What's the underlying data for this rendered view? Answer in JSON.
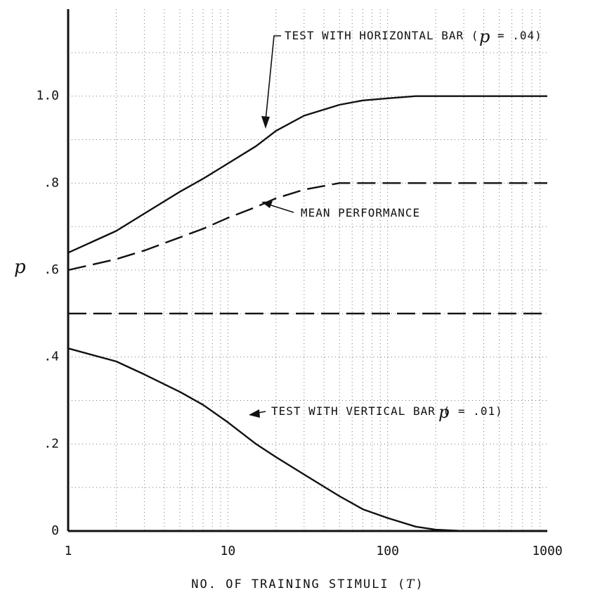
{
  "chart_data": {
    "type": "line",
    "x_scale": "log",
    "xlim": [
      1,
      1000
    ],
    "ylim": [
      0,
      1.2
    ],
    "grid": true,
    "xlabel_prefix": "NO. OF TRAINING STIMULI (",
    "xlabel_var": "T",
    "xlabel_suffix": ")",
    "ylabel": "p",
    "x_ticks": [
      {
        "value": 1,
        "label": "1"
      },
      {
        "value": 10,
        "label": "10"
      },
      {
        "value": 100,
        "label": "100"
      },
      {
        "value": 1000,
        "label": "1000"
      }
    ],
    "y_ticks": [
      {
        "value": 0,
        "label": "0"
      },
      {
        "value": 0.2,
        "label": ".2"
      },
      {
        "value": 0.4,
        "label": ".4"
      },
      {
        "value": 0.6,
        "label": ".6"
      },
      {
        "value": 0.8,
        "label": ".8"
      },
      {
        "value": 1.0,
        "label": "1.0"
      }
    ],
    "series": [
      {
        "key": "horizontal",
        "style": "solid",
        "x": [
          1,
          2,
          3,
          5,
          7,
          10,
          15,
          20,
          30,
          50,
          70,
          100,
          150,
          200,
          300,
          500,
          1000
        ],
        "y": [
          0.64,
          0.69,
          0.73,
          0.78,
          0.81,
          0.845,
          0.885,
          0.92,
          0.955,
          0.98,
          0.99,
          0.995,
          1.0,
          1.0,
          1.0,
          1.0,
          1.0
        ]
      },
      {
        "key": "mean",
        "style": "dashed",
        "x": [
          1,
          2,
          3,
          5,
          7,
          10,
          15,
          20,
          30,
          50,
          70,
          100,
          200,
          500,
          1000
        ],
        "y": [
          0.6,
          0.625,
          0.645,
          0.675,
          0.695,
          0.72,
          0.745,
          0.765,
          0.785,
          0.8,
          0.8,
          0.8,
          0.8,
          0.8,
          0.8
        ]
      },
      {
        "key": "chance",
        "style": "dashed",
        "x": [
          1,
          1000
        ],
        "y": [
          0.5,
          0.5
        ]
      },
      {
        "key": "vertical",
        "style": "solid",
        "x": [
          1,
          2,
          3,
          5,
          7,
          10,
          15,
          20,
          30,
          50,
          70,
          100,
          150,
          200,
          300,
          500,
          1000
        ],
        "y": [
          0.42,
          0.39,
          0.36,
          0.32,
          0.29,
          0.25,
          0.2,
          0.17,
          0.13,
          0.08,
          0.05,
          0.03,
          0.01,
          0.003,
          0.0,
          0.0,
          0.0
        ]
      }
    ],
    "annotations": [
      {
        "key": "horizontal",
        "text": "TEST WITH HORIZONTAL BAR (",
        "p_symbol": "p",
        "value": "= .04)"
      },
      {
        "key": "mean",
        "text": "MEAN PERFORMANCE"
      },
      {
        "key": "vertical",
        "text": "TEST WITH VERTICAL BAR (",
        "p_symbol": "p",
        "value": "= .01)"
      }
    ]
  }
}
